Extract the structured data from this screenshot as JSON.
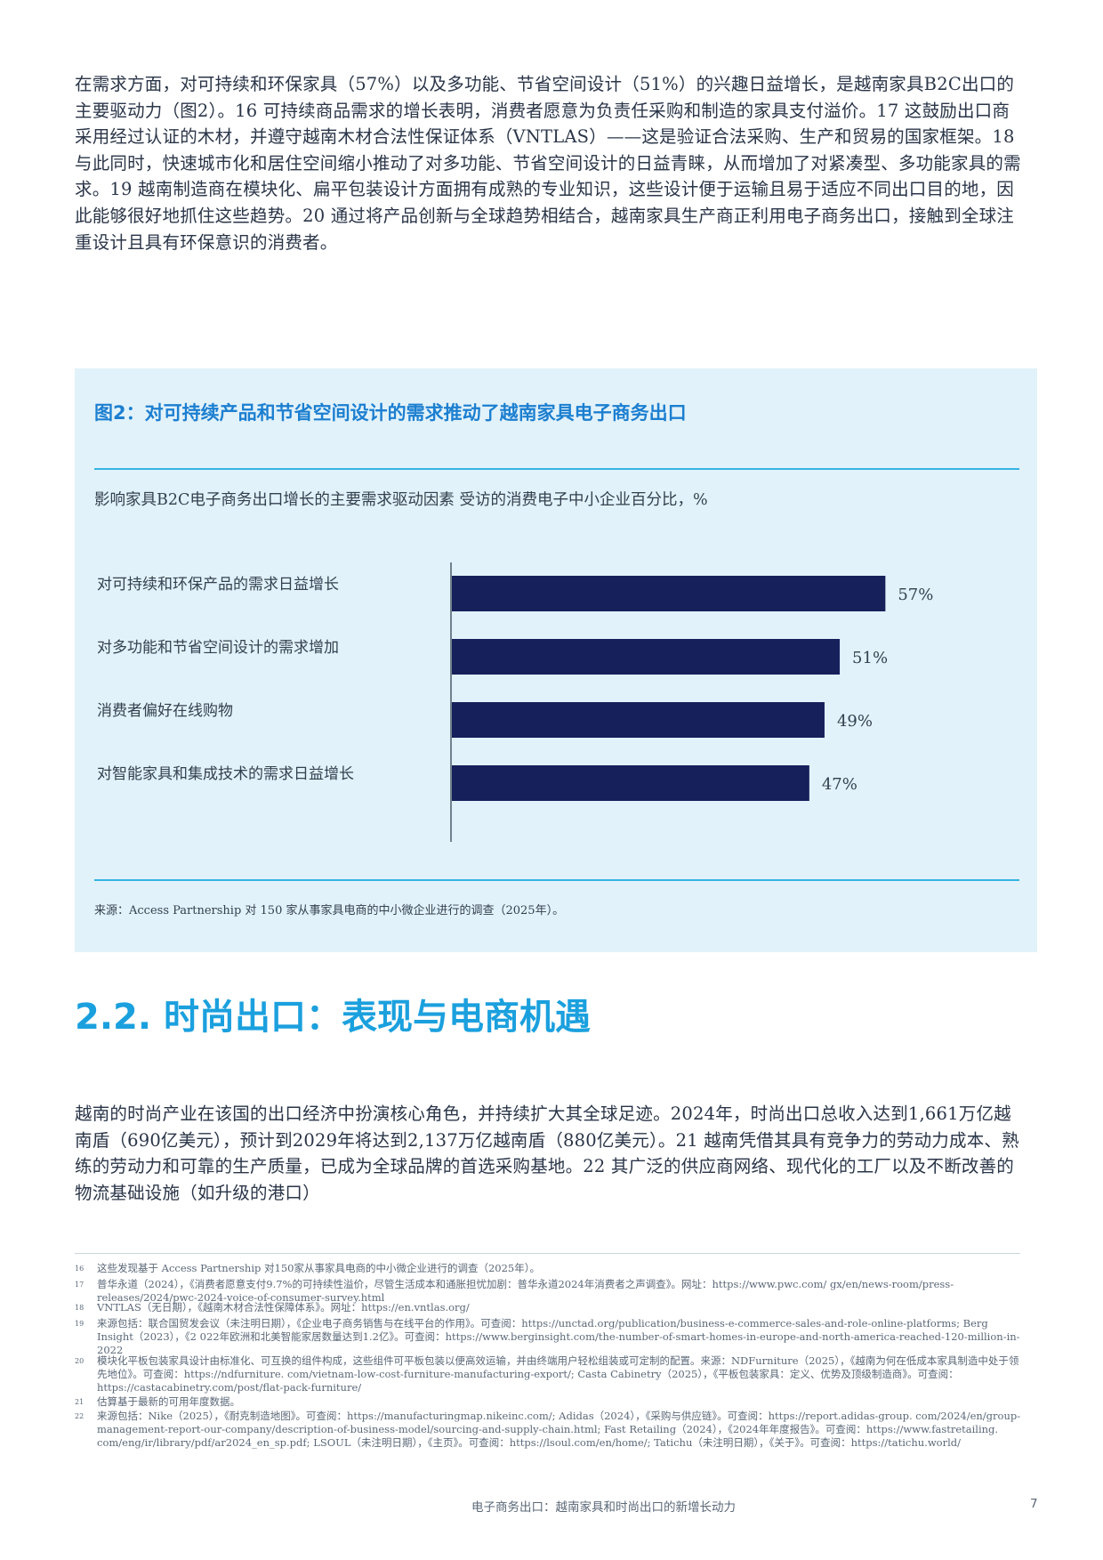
{
  "body": {
    "paragraph1": "在需求方面，对可持续和环保家具（57%）以及多功能、节省空间设计（51%）的兴趣日益增长，是越南家具B2C出口的主要驱动力（图2）。16 可持续商品需求的增长表明，消费者愿意为负责任采购和制造的家具支付溢价。17 这鼓励出口商采用经过认证的木材，并遵守越南木材合法性保证体系（VNTLAS）——这是验证合法采购、生产和贸易的国家框架。18 与此同时，快速城市化和居住空间缩小推动了对多功能、节省空间设计的日益青睐，从而增加了对紧凑型、多功能家具的需求。19 越南制造商在模块化、扁平包装设计方面拥有成熟的专业知识，这些设计便于运输且易于适应不同出口目的地，因此能够很好地抓住这些趋势。20 通过将产品创新与全球趋势相结合，越南家具生产商正利用电子商务出口，接触到全球注重设计且具有环保意识的消费者。",
    "section_heading": "2.2. 时尚出口：表现与电商机遇",
    "paragraph2": "越南的时尚产业在该国的出口经济中扮演核心角色，并持续扩大其全球足迹。2024年，时尚出口总收入达到1,661万亿越南盾（690亿美元），预计到2029年将达到2,137万亿越南盾（880亿美元）。21 越南凭借其具有竞争力的劳动力成本、熟练的劳动力和可靠的生产质量，已成为全球品牌的首选采购基地。22 其广泛的供应商网络、现代化的工厂以及不断改善的物流基础设施（如升级的港口）"
  },
  "figure": {
    "title": "图2：对可持续产品和节省空间设计的需求推动了越南家具电子商务出口",
    "subtitle": "影响家具B2C电子商务出口增长的主要需求驱动因素 受访的消费电子中小企业百分比，%",
    "source": "来源：Access Partnership 对 150 家从事家具电商的中小微企业进行的调查（2025年）。"
  },
  "chart_data": {
    "type": "bar",
    "orientation": "horizontal",
    "categories": [
      "对可持续和环保产品的需求日益增长",
      "对多功能和节省空间设计的需求增加",
      "消费者偏好在线购物",
      "对智能家具和集成技术的需求日益增长"
    ],
    "values": [
      57,
      51,
      49,
      47
    ],
    "value_labels": [
      "57%",
      "51%",
      "49%",
      "47%"
    ],
    "unit": "%",
    "bar_color": "#16205a",
    "grid": false
  },
  "footnotes": [
    {
      "num": "16",
      "text": "这些发现基于 Access Partnership 对150家从事家具电商的中小微企业进行的调查（2025年）。"
    },
    {
      "num": "17",
      "text": "普华永道（2024），《消费者愿意支付9.7%的可持续性溢价，尽管生活成本和通胀担忧加剧：普华永道2024年消费者之声调查》。网址：https://www.pwc.com/ gx/en/news-room/press-releases/2024/pwc-2024-voice-of-consumer-survey.html"
    },
    {
      "num": "18",
      "text": "VNTLAS（无日期），《越南木材合法性保障体系》。网址：https://en.vntlas.org/"
    },
    {
      "num": "19",
      "text": "来源包括：联合国贸发会议（未注明日期），《企业电子商务销售与在线平台的作用》。可查阅：https://unctad.org/publication/business-e-commerce-sales-and-role-online-platforms; Berg Insight（2023），《2 022年欧洲和北美智能家居数量达到1.2亿》。可查阅：https://www.berginsight.com/the-number-of-smart-homes-in-europe-and-north-america-reached-120-million-in-2022"
    },
    {
      "num": "20",
      "text": "模块化平板包装家具设计由标准化、可互换的组件构成，这些组件可平板包装以便高效运输，并由终端用户轻松组装或可定制的配置。来源：NDFurniture（2025），《越南为何在低成本家具制造中处于领先地位》。可查阅：https://ndfurniture. com/vietnam-low-cost-furniture-manufacturing-export/; Casta Cabinetry（2025），《平板包装家具：定义、优势及顶级制造商》。可查阅：https://castacabinetry.com/post/flat-pack-furniture/"
    },
    {
      "num": "21",
      "text": "估算基于最新的可用年度数据。"
    },
    {
      "num": "22",
      "text": "来源包括：Nike（2025），《耐克制造地图》。可查阅：https://manufacturingmap.nikeinc.com/; Adidas（2024），《采购与供应链》。可查阅：https://report.adidas-group. com/2024/en/group-management-report-our-company/description-of-business-model/sourcing-and-supply-chain.html; Fast Retailing（2024），《2024年年度报告》。可查阅：https://www.fastretailing. com/eng/ir/library/pdf/ar2024_en_sp.pdf; LSOUL（未注明日期），《主页》。可查阅：https://lsoul.com/en/home/; Tatichu（未注明日期），《关于》。可查阅：https://tatichu.world/"
    }
  ],
  "footer": {
    "title": "电子商务出口：越南家具和时尚出口的新增长动力",
    "page_number": "7"
  }
}
